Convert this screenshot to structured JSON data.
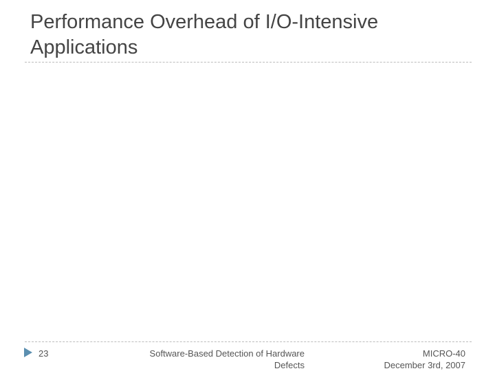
{
  "title": "Performance Overhead of I/O-Intensive Applications",
  "footer": {
    "page_number": "23",
    "center_line1": "Software-Based Detection of Hardware",
    "center_line2": "Defects",
    "right_line1": "MICRO-40",
    "right_line2": "December 3rd, 2007"
  }
}
